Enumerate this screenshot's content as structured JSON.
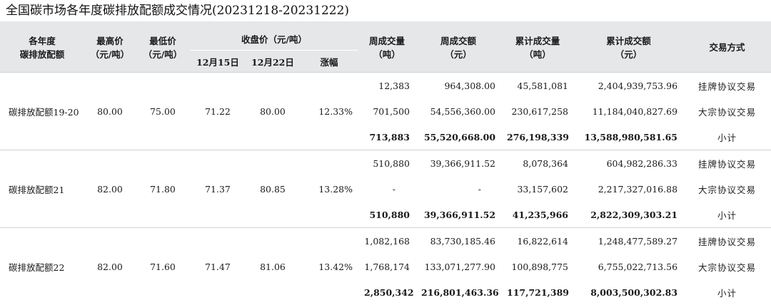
{
  "title": "全国碳市场各年度碳排放配额成交情况(20231218-20231222)",
  "headers": {
    "vintage": "各年度\n碳排放配额",
    "high": "最高价\n（元/吨）",
    "low": "最低价\n（元/吨）",
    "close_group": "收盘价（元/吨）",
    "close_dec15": "12月15日",
    "close_dec22": "12月22日",
    "change": "涨幅",
    "weekly_volume": "周成交量\n（吨）",
    "weekly_turnover": "周成交额\n（元）",
    "cum_volume": "累计成交量\n（吨）",
    "cum_turnover": "累计成交额\n（元）",
    "method": "交易方式"
  },
  "groups": [
    {
      "vintage": "碳排放配额19-20",
      "high": "80.00",
      "low": "75.00",
      "close_dec15": "71.22",
      "close_dec22": "80.00",
      "change": "12.33%",
      "rows": [
        {
          "weekly_volume": "12,383",
          "weekly_turnover": "964,308.00",
          "cum_volume": "45,581,081",
          "cum_turnover": "2,404,939,753.96",
          "method": "挂牌协议交易"
        },
        {
          "weekly_volume": "701,500",
          "weekly_turnover": "54,556,360.00",
          "cum_volume": "230,617,258",
          "cum_turnover": "11,184,040,827.69",
          "method": "大宗协议交易"
        },
        {
          "weekly_volume": "713,883",
          "weekly_turnover": "55,520,668.00",
          "cum_volume": "276,198,339",
          "cum_turnover": "13,588,980,581.65",
          "method": "小计"
        }
      ]
    },
    {
      "vintage": "碳排放配额21",
      "high": "82.00",
      "low": "71.80",
      "close_dec15": "71.37",
      "close_dec22": "80.85",
      "change": "13.28%",
      "rows": [
        {
          "weekly_volume": "510,880",
          "weekly_turnover": "39,366,911.52",
          "cum_volume": "8,078,364",
          "cum_turnover": "604,982,286.33",
          "method": "挂牌协议交易"
        },
        {
          "weekly_volume": "-",
          "weekly_turnover": "-",
          "cum_volume": "33,157,602",
          "cum_turnover": "2,217,327,016.88",
          "method": "大宗协议交易"
        },
        {
          "weekly_volume": "510,880",
          "weekly_turnover": "39,366,911.52",
          "cum_volume": "41,235,966",
          "cum_turnover": "2,822,309,303.21",
          "method": "小计"
        }
      ]
    },
    {
      "vintage": "碳排放配额22",
      "high": "82.00",
      "low": "71.60",
      "close_dec15": "71.47",
      "close_dec22": "81.06",
      "change": "13.42%",
      "rows": [
        {
          "weekly_volume": "1,082,168",
          "weekly_turnover": "83,730,185.46",
          "cum_volume": "16,822,614",
          "cum_turnover": "1,248,477,589.27",
          "method": "挂牌协议交易"
        },
        {
          "weekly_volume": "1,768,174",
          "weekly_turnover": "133,071,277.90",
          "cum_volume": "100,898,775",
          "cum_turnover": "6,755,022,713.56",
          "method": "大宗协议交易"
        },
        {
          "weekly_volume": "2,850,342",
          "weekly_turnover": "216,801,463.36",
          "cum_volume": "117,721,389",
          "cum_turnover": "8,003,500,302.83",
          "method": "小计"
        }
      ]
    }
  ]
}
